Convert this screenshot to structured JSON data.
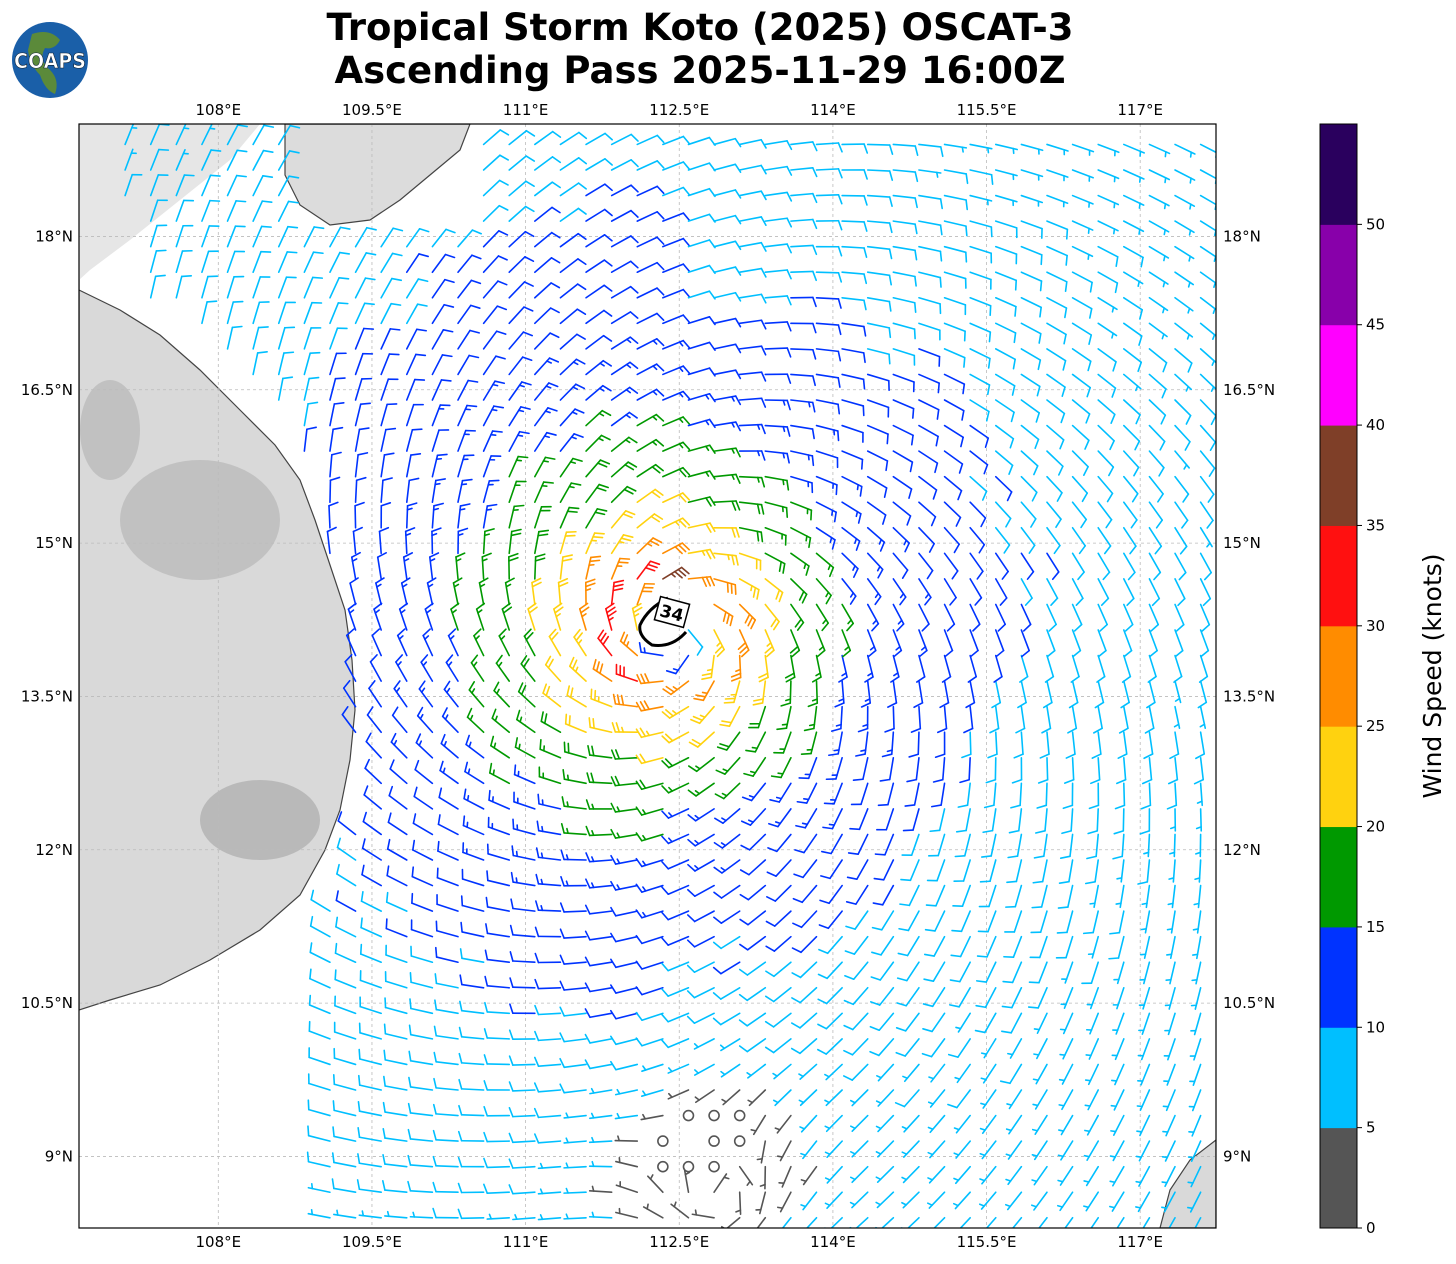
{
  "title": {
    "line1": "Tropical Storm Koto (2025) OSCAT-3",
    "line2": "Ascending Pass 2025-11-29 16:00Z"
  },
  "logo": {
    "text": "COAPS"
  },
  "chart_data": {
    "type": "wind-barb-map",
    "title": "Tropical Storm Koto (2025) OSCAT-3 Ascending Pass 2025-11-29 16:00Z",
    "lon_range": [
      106.64,
      117.74
    ],
    "lat_range": [
      8.3,
      19.1
    ],
    "lon_ticks": [
      108,
      109.5,
      111,
      112.5,
      114,
      115.5,
      117
    ],
    "lon_tick_labels": [
      "108°E",
      "109.5°E",
      "111°E",
      "112.5°E",
      "114°E",
      "115.5°E",
      "117°E"
    ],
    "lat_ticks": [
      18,
      16.5,
      15,
      13.5,
      12,
      10.5,
      9
    ],
    "lat_tick_labels": [
      "18°N",
      "16.5°N",
      "15°N",
      "13.5°N",
      "12°N",
      "10.5°N",
      "9°N"
    ],
    "storm_center": {
      "lon": 112.45,
      "lat": 14.1
    },
    "max_wind_kt": 34,
    "radius_max_wind_deg": 0.55,
    "secondary_circulation": {
      "lon": 112.9,
      "lat": 8.6
    },
    "contour": {
      "label": "34",
      "value_kt": 34
    },
    "colorbar": {
      "label": "Wind Speed (knots)",
      "bounds": [
        0,
        5,
        10,
        15,
        20,
        25,
        30,
        35,
        40,
        45,
        50,
        55
      ],
      "tick_labels": [
        "0",
        "5",
        "10",
        "15",
        "20",
        "25",
        "30",
        "35",
        "40",
        "45",
        "50"
      ],
      "colors": [
        "#555555",
        "#00bfff",
        "#0033ff",
        "#009900",
        "#ffd20f",
        "#ff8c00",
        "#ff1010",
        "#7f3f28",
        "#ff00ff",
        "#8800aa",
        "#2a005e"
      ]
    }
  }
}
